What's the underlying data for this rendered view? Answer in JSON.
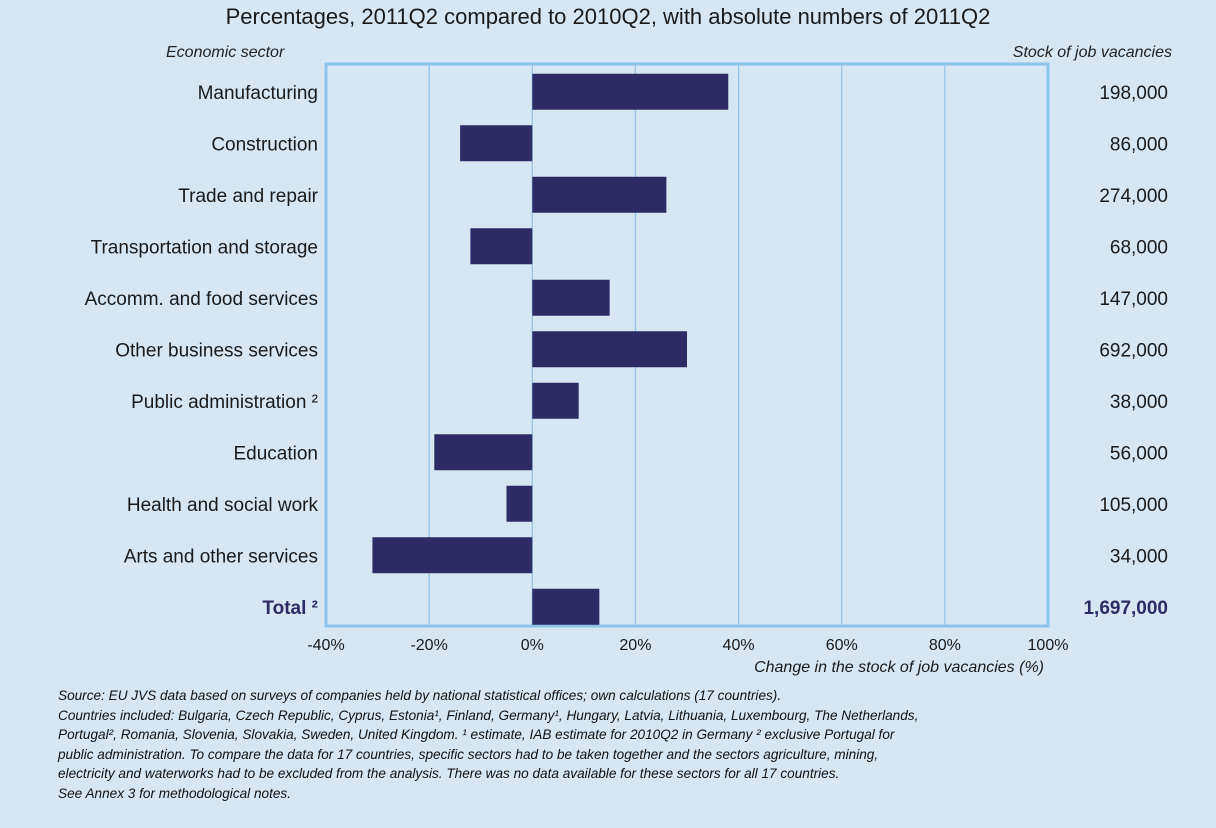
{
  "title": "Percentages, 2011Q2 compared to 2010Q2, with absolute numbers of 2011Q2",
  "left_header": "Economic sector",
  "right_header": "Stock of job vacancies",
  "colors": {
    "bar": "#2e2a66",
    "grid": "#8ec3ea",
    "background": "#d6e6f3",
    "total_text": "#2e2a66"
  },
  "chart_data": {
    "type": "bar",
    "orientation": "horizontal",
    "title": "Percentages, 2011Q2 compared to 2010Q2, with absolute numbers of 2011Q2",
    "xlabel": "Change in the stock of job vacancies (%)",
    "categories": [
      "Manufacturing",
      "Construction",
      "Trade and repair",
      "Transportation and storage",
      "Accomm. and food services",
      "Other business services",
      "Public administration ²",
      "Education",
      "Health and social work",
      "Arts and other services",
      "Total ²"
    ],
    "values": [
      38,
      -14,
      26,
      -12,
      15,
      30,
      9,
      -19,
      -5,
      -31,
      13
    ],
    "stock": [
      "198,000",
      "86,000",
      "274,000",
      "68,000",
      "147,000",
      "692,000",
      "38,000",
      "56,000",
      "105,000",
      "34,000",
      "1,697,000"
    ],
    "xlim": [
      -40,
      100
    ],
    "xticks": [
      -40,
      -20,
      0,
      20,
      40,
      60,
      80,
      100
    ],
    "xtick_labels": [
      "-40%",
      "-20%",
      "0%",
      "20%",
      "40%",
      "60%",
      "80%",
      "100%"
    ],
    "grid": true,
    "emphasized_category": "Total ²"
  },
  "notes": [
    "Source:  EU JVS data based on surveys of companies held by national statistical offices; own calculations (17 countries).",
    "Countries included: Bulgaria, Czech Republic, Cyprus, Estonia¹, Finland, Germany¹, Hungary, Latvia, Lithuania, Luxembourg, The Netherlands,",
    "Portugal², Romania, Slovenia, Slovakia, Sweden, United Kingdom. ¹ estimate, IAB estimate for 2010Q2 in Germany ² exclusive Portugal for",
    "public administration. To compare the data for 17 countries, specific sectors had to be taken together and the sectors agriculture, mining,",
    "electricity and waterworks had to be excluded from the analysis. There was no data available for these sectors for all 17 countries.",
    "See Annex 3 for methodological notes."
  ]
}
